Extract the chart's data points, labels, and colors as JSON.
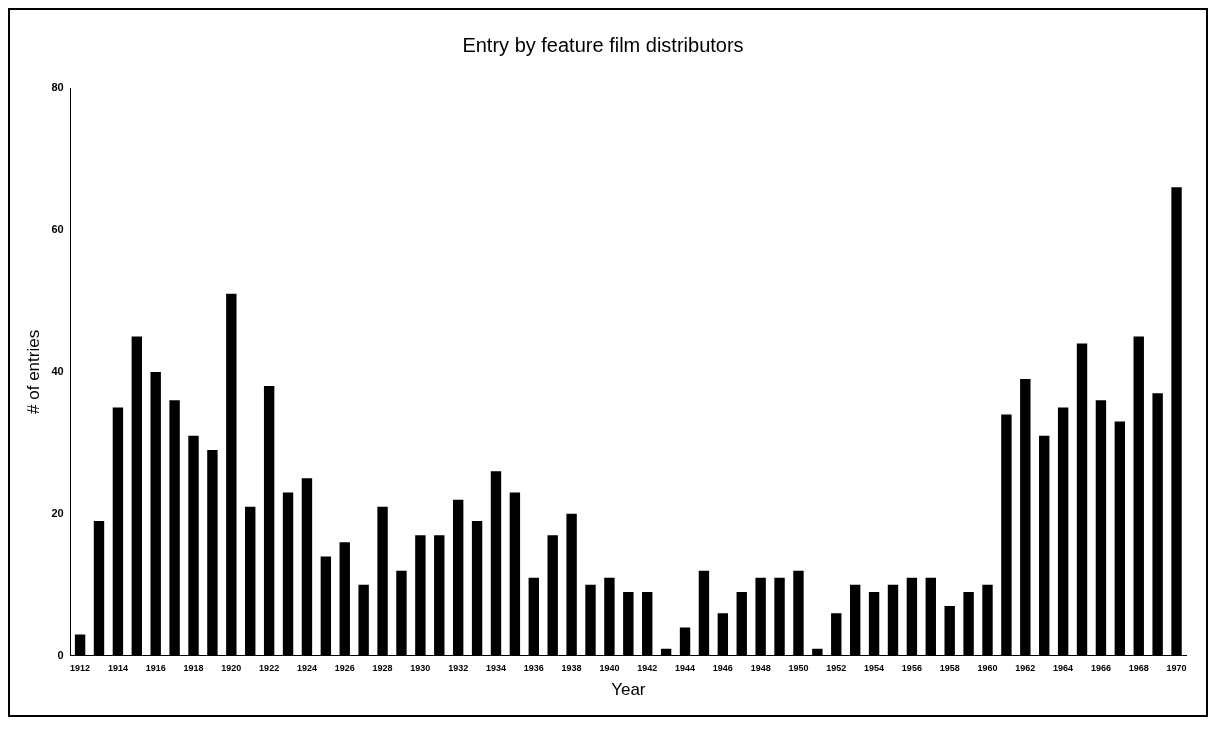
{
  "chart_data": {
    "type": "bar",
    "title": "Entry by feature film distributors",
    "xlabel": "Year",
    "ylabel": "# of entries",
    "categories": [
      "1912",
      null,
      "1914",
      null,
      "1916",
      null,
      "1918",
      null,
      "1920",
      null,
      "1922",
      null,
      "1924",
      null,
      "1926",
      null,
      "1928",
      null,
      "1930",
      null,
      "1932",
      null,
      "1934",
      null,
      "1936",
      null,
      "1938",
      null,
      "1940",
      null,
      "1942",
      null,
      "1944",
      null,
      "1946",
      null,
      "1948",
      null,
      "1950",
      null,
      "1952",
      null,
      "1954",
      null,
      "1956",
      null,
      "1958",
      null,
      "1960",
      null,
      "1962",
      null,
      "1964",
      null,
      "1966",
      null,
      "1968",
      null,
      "1970"
    ],
    "values": [
      3,
      19,
      35,
      45,
      40,
      36,
      31,
      29,
      51,
      21,
      38,
      23,
      25,
      14,
      16,
      10,
      21,
      12,
      17,
      17,
      22,
      19,
      26,
      23,
      11,
      17,
      20,
      10,
      11,
      9,
      9,
      1,
      4,
      12,
      6,
      9,
      11,
      11,
      12,
      1,
      6,
      10,
      9,
      10,
      11,
      11,
      7,
      9,
      10,
      34,
      39,
      31,
      35,
      44,
      36,
      33,
      45,
      37,
      66
    ],
    "color": "#000000",
    "ylim": [
      0,
      80
    ],
    "yticks": [
      0,
      20,
      40,
      60,
      80
    ],
    "grid": false,
    "legend": false
  }
}
